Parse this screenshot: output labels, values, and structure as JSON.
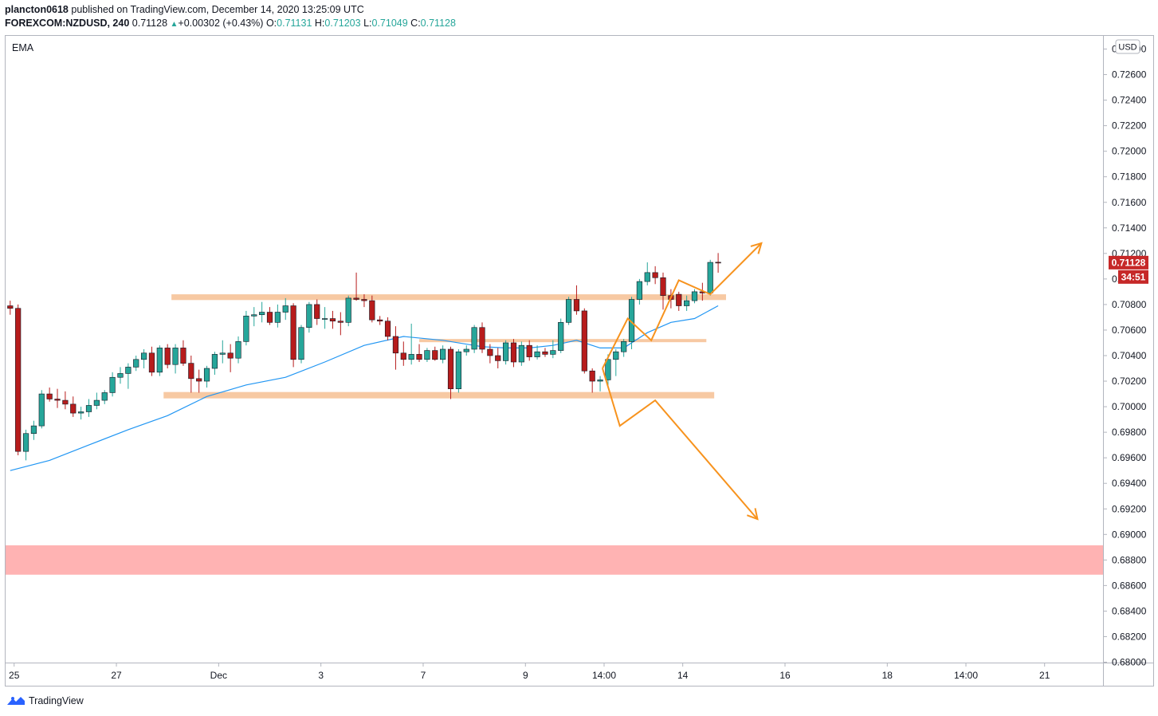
{
  "header": {
    "publisher": "plancton0618",
    "published_text": "published on TradingView.com, December 14, 2020 13:25:09 UTC",
    "symbol": "FOREXCOM:NZDUSD, 240",
    "last": "0.71128",
    "change_arrow": "▲",
    "change": "+0.00302 (+0.43%)",
    "o_label": "O:",
    "o": "0.71131",
    "h_label": "H:",
    "h": "0.71203",
    "l_label": "L:",
    "l": "0.71049",
    "c_label": "C:",
    "c": "0.71128"
  },
  "indicator_label": "EMA",
  "currency_label": "USD",
  "last_price_tag": "0.71128",
  "countdown_tag": "34:51",
  "brand": {
    "name": "TradingView",
    "icon": "tradingview-logo-icon"
  },
  "colors": {
    "up": "#26a69a",
    "down": "#b71c1c",
    "ema": "#2196f3",
    "zone": "#f7c9a3",
    "support_zone": "#ffb3b3",
    "arrow": "#f7931e",
    "price_tag": "#c62828"
  },
  "chart_data": {
    "type": "candlestick",
    "symbol": "FOREXCOM:NZDUSD",
    "timeframe": "240",
    "y_axis": {
      "ticks": [
        "0.68000",
        "0.68200",
        "0.68400",
        "0.68600",
        "0.68800",
        "0.69000",
        "0.69200",
        "0.69400",
        "0.69600",
        "0.69800",
        "0.70000",
        "0.70200",
        "0.70400",
        "0.70600",
        "0.70800",
        "0.71000",
        "0.71200",
        "0.71400",
        "0.71600",
        "0.71800",
        "0.72000",
        "0.72200",
        "0.72400",
        "0.72600",
        "0.72800"
      ],
      "range": [
        0.68,
        0.7285
      ]
    },
    "x_axis": {
      "labels": [
        "25",
        "27",
        "Dec",
        "3",
        "7",
        "9",
        "14:00",
        "14",
        "16",
        "18",
        "14:00",
        "21"
      ],
      "label_bar_index": [
        0.5,
        13.5,
        26.5,
        39.5,
        52.5,
        65.5,
        75.5,
        85.5,
        98.5,
        111.5,
        121.5,
        131.5
      ]
    },
    "candles": [
      {
        "i": 0,
        "o": 0.7079,
        "h": 0.7083,
        "l": 0.7072,
        "c": 0.7077
      },
      {
        "i": 1,
        "o": 0.7077,
        "h": 0.708,
        "l": 0.6962,
        "c": 0.6965
      },
      {
        "i": 2,
        "o": 0.6965,
        "h": 0.6982,
        "l": 0.6958,
        "c": 0.6979
      },
      {
        "i": 3,
        "o": 0.6979,
        "h": 0.6989,
        "l": 0.6974,
        "c": 0.6985
      },
      {
        "i": 4,
        "o": 0.6985,
        "h": 0.7013,
        "l": 0.6983,
        "c": 0.701
      },
      {
        "i": 5,
        "o": 0.701,
        "h": 0.7015,
        "l": 0.7004,
        "c": 0.7006
      },
      {
        "i": 6,
        "o": 0.7006,
        "h": 0.7014,
        "l": 0.6999,
        "c": 0.7005
      },
      {
        "i": 7,
        "o": 0.7005,
        "h": 0.7012,
        "l": 0.6998,
        "c": 0.7002
      },
      {
        "i": 8,
        "o": 0.7002,
        "h": 0.7008,
        "l": 0.6992,
        "c": 0.6995
      },
      {
        "i": 9,
        "o": 0.6995,
        "h": 0.7,
        "l": 0.699,
        "c": 0.6996
      },
      {
        "i": 10,
        "o": 0.6996,
        "h": 0.7006,
        "l": 0.6992,
        "c": 0.7001
      },
      {
        "i": 11,
        "o": 0.7001,
        "h": 0.7011,
        "l": 0.6998,
        "c": 0.7005
      },
      {
        "i": 12,
        "o": 0.7005,
        "h": 0.7013,
        "l": 0.7002,
        "c": 0.7011
      },
      {
        "i": 13,
        "o": 0.7011,
        "h": 0.7027,
        "l": 0.7008,
        "c": 0.7023
      },
      {
        "i": 14,
        "o": 0.7023,
        "h": 0.7031,
        "l": 0.7018,
        "c": 0.7026
      },
      {
        "i": 15,
        "o": 0.7026,
        "h": 0.7034,
        "l": 0.7014,
        "c": 0.7031
      },
      {
        "i": 16,
        "o": 0.7031,
        "h": 0.704,
        "l": 0.7028,
        "c": 0.7037
      },
      {
        "i": 17,
        "o": 0.7037,
        "h": 0.7045,
        "l": 0.703,
        "c": 0.7042
      },
      {
        "i": 18,
        "o": 0.7042,
        "h": 0.7047,
        "l": 0.7024,
        "c": 0.7027
      },
      {
        "i": 19,
        "o": 0.7027,
        "h": 0.7048,
        "l": 0.7024,
        "c": 0.7046
      },
      {
        "i": 20,
        "o": 0.7046,
        "h": 0.7049,
        "l": 0.703,
        "c": 0.7033
      },
      {
        "i": 21,
        "o": 0.7033,
        "h": 0.7049,
        "l": 0.7026,
        "c": 0.7046
      },
      {
        "i": 22,
        "o": 0.7046,
        "h": 0.7052,
        "l": 0.7032,
        "c": 0.7034
      },
      {
        "i": 23,
        "o": 0.7034,
        "h": 0.704,
        "l": 0.7011,
        "c": 0.7022
      },
      {
        "i": 24,
        "o": 0.7022,
        "h": 0.7029,
        "l": 0.7011,
        "c": 0.702
      },
      {
        "i": 25,
        "o": 0.702,
        "h": 0.7032,
        "l": 0.7015,
        "c": 0.703
      },
      {
        "i": 26,
        "o": 0.703,
        "h": 0.7043,
        "l": 0.7025,
        "c": 0.7041
      },
      {
        "i": 27,
        "o": 0.7041,
        "h": 0.7052,
        "l": 0.7034,
        "c": 0.7042
      },
      {
        "i": 28,
        "o": 0.7042,
        "h": 0.7049,
        "l": 0.7027,
        "c": 0.7038
      },
      {
        "i": 29,
        "o": 0.7038,
        "h": 0.7055,
        "l": 0.7034,
        "c": 0.7051
      },
      {
        "i": 30,
        "o": 0.7051,
        "h": 0.7075,
        "l": 0.7048,
        "c": 0.7071
      },
      {
        "i": 31,
        "o": 0.7071,
        "h": 0.7078,
        "l": 0.7063,
        "c": 0.7072
      },
      {
        "i": 32,
        "o": 0.7072,
        "h": 0.7082,
        "l": 0.7066,
        "c": 0.7074
      },
      {
        "i": 33,
        "o": 0.7074,
        "h": 0.7078,
        "l": 0.7064,
        "c": 0.7066
      },
      {
        "i": 34,
        "o": 0.7066,
        "h": 0.708,
        "l": 0.7062,
        "c": 0.7074
      },
      {
        "i": 35,
        "o": 0.7074,
        "h": 0.7085,
        "l": 0.7068,
        "c": 0.7079
      },
      {
        "i": 36,
        "o": 0.7079,
        "h": 0.7081,
        "l": 0.7031,
        "c": 0.7037
      },
      {
        "i": 37,
        "o": 0.7037,
        "h": 0.7064,
        "l": 0.7034,
        "c": 0.7062
      },
      {
        "i": 38,
        "o": 0.7062,
        "h": 0.7082,
        "l": 0.7058,
        "c": 0.708
      },
      {
        "i": 39,
        "o": 0.708,
        "h": 0.7084,
        "l": 0.7064,
        "c": 0.7069
      },
      {
        "i": 40,
        "o": 0.7069,
        "h": 0.7078,
        "l": 0.7061,
        "c": 0.7069
      },
      {
        "i": 41,
        "o": 0.7069,
        "h": 0.7075,
        "l": 0.7061,
        "c": 0.7067
      },
      {
        "i": 42,
        "o": 0.7067,
        "h": 0.7074,
        "l": 0.7056,
        "c": 0.7066
      },
      {
        "i": 43,
        "o": 0.7066,
        "h": 0.7087,
        "l": 0.7063,
        "c": 0.7085
      },
      {
        "i": 44,
        "o": 0.7085,
        "h": 0.7105,
        "l": 0.7083,
        "c": 0.7084
      },
      {
        "i": 45,
        "o": 0.7084,
        "h": 0.7088,
        "l": 0.7078,
        "c": 0.7083
      },
      {
        "i": 46,
        "o": 0.7083,
        "h": 0.7087,
        "l": 0.7066,
        "c": 0.7068
      },
      {
        "i": 47,
        "o": 0.7068,
        "h": 0.7071,
        "l": 0.7064,
        "c": 0.7067
      },
      {
        "i": 48,
        "o": 0.7067,
        "h": 0.707,
        "l": 0.7052,
        "c": 0.7055
      },
      {
        "i": 49,
        "o": 0.7055,
        "h": 0.7063,
        "l": 0.7029,
        "c": 0.7042
      },
      {
        "i": 50,
        "o": 0.7042,
        "h": 0.7051,
        "l": 0.7032,
        "c": 0.7037
      },
      {
        "i": 51,
        "o": 0.7037,
        "h": 0.7065,
        "l": 0.7033,
        "c": 0.7041
      },
      {
        "i": 52,
        "o": 0.7041,
        "h": 0.7049,
        "l": 0.7035,
        "c": 0.7037
      },
      {
        "i": 53,
        "o": 0.7037,
        "h": 0.7046,
        "l": 0.7035,
        "c": 0.7044
      },
      {
        "i": 54,
        "o": 0.7044,
        "h": 0.7047,
        "l": 0.7036,
        "c": 0.7037
      },
      {
        "i": 55,
        "o": 0.7037,
        "h": 0.7048,
        "l": 0.7034,
        "c": 0.7045
      },
      {
        "i": 56,
        "o": 0.7045,
        "h": 0.7047,
        "l": 0.7006,
        "c": 0.7014
      },
      {
        "i": 57,
        "o": 0.7014,
        "h": 0.7045,
        "l": 0.7011,
        "c": 0.7043
      },
      {
        "i": 58,
        "o": 0.7043,
        "h": 0.7048,
        "l": 0.704,
        "c": 0.7045
      },
      {
        "i": 59,
        "o": 0.7045,
        "h": 0.7064,
        "l": 0.7042,
        "c": 0.7062
      },
      {
        "i": 60,
        "o": 0.7062,
        "h": 0.7066,
        "l": 0.7042,
        "c": 0.7045
      },
      {
        "i": 61,
        "o": 0.7045,
        "h": 0.7049,
        "l": 0.7034,
        "c": 0.704
      },
      {
        "i": 62,
        "o": 0.704,
        "h": 0.7046,
        "l": 0.703,
        "c": 0.7036
      },
      {
        "i": 63,
        "o": 0.7036,
        "h": 0.7052,
        "l": 0.7033,
        "c": 0.705
      },
      {
        "i": 64,
        "o": 0.705,
        "h": 0.7053,
        "l": 0.7031,
        "c": 0.7035
      },
      {
        "i": 65,
        "o": 0.7035,
        "h": 0.7051,
        "l": 0.7032,
        "c": 0.7048
      },
      {
        "i": 66,
        "o": 0.7048,
        "h": 0.7052,
        "l": 0.7036,
        "c": 0.7039
      },
      {
        "i": 67,
        "o": 0.7039,
        "h": 0.7048,
        "l": 0.7037,
        "c": 0.7043
      },
      {
        "i": 68,
        "o": 0.7043,
        "h": 0.7046,
        "l": 0.7039,
        "c": 0.7041
      },
      {
        "i": 69,
        "o": 0.7041,
        "h": 0.7052,
        "l": 0.7038,
        "c": 0.7044
      },
      {
        "i": 70,
        "o": 0.7044,
        "h": 0.7069,
        "l": 0.7042,
        "c": 0.7066
      },
      {
        "i": 71,
        "o": 0.7066,
        "h": 0.7086,
        "l": 0.7064,
        "c": 0.7084
      },
      {
        "i": 72,
        "o": 0.7084,
        "h": 0.7095,
        "l": 0.7072,
        "c": 0.7075
      },
      {
        "i": 73,
        "o": 0.7075,
        "h": 0.7077,
        "l": 0.7026,
        "c": 0.7028
      },
      {
        "i": 74,
        "o": 0.7028,
        "h": 0.703,
        "l": 0.7011,
        "c": 0.702
      },
      {
        "i": 75,
        "o": 0.702,
        "h": 0.7024,
        "l": 0.7012,
        "c": 0.7021
      },
      {
        "i": 76,
        "o": 0.7021,
        "h": 0.7041,
        "l": 0.7016,
        "c": 0.7037
      },
      {
        "i": 77,
        "o": 0.7037,
        "h": 0.7045,
        "l": 0.7024,
        "c": 0.7043
      },
      {
        "i": 78,
        "o": 0.7043,
        "h": 0.7053,
        "l": 0.7039,
        "c": 0.7051
      },
      {
        "i": 79,
        "o": 0.7051,
        "h": 0.7086,
        "l": 0.7045,
        "c": 0.7084
      },
      {
        "i": 80,
        "o": 0.7084,
        "h": 0.71,
        "l": 0.708,
        "c": 0.7098
      },
      {
        "i": 81,
        "o": 0.7098,
        "h": 0.7113,
        "l": 0.7095,
        "c": 0.7105
      },
      {
        "i": 82,
        "o": 0.7105,
        "h": 0.711,
        "l": 0.7096,
        "c": 0.7101
      },
      {
        "i": 83,
        "o": 0.7101,
        "h": 0.7105,
        "l": 0.7076,
        "c": 0.7087
      },
      {
        "i": 84,
        "o": 0.7087,
        "h": 0.7092,
        "l": 0.7077,
        "c": 0.7084
      },
      {
        "i": 85,
        "o": 0.7088,
        "h": 0.709,
        "l": 0.7075,
        "c": 0.7079
      },
      {
        "i": 86,
        "o": 0.7079,
        "h": 0.7087,
        "l": 0.7075,
        "c": 0.7083
      },
      {
        "i": 87,
        "o": 0.7083,
        "h": 0.7092,
        "l": 0.7081,
        "c": 0.709
      },
      {
        "i": 88,
        "o": 0.709,
        "h": 0.7097,
        "l": 0.7083,
        "c": 0.7089
      },
      {
        "i": 89,
        "o": 0.7089,
        "h": 0.7115,
        "l": 0.7087,
        "c": 0.7113
      },
      {
        "i": 90,
        "o": 0.71131,
        "h": 0.71203,
        "l": 0.71049,
        "c": 0.71128
      }
    ],
    "ema_series": [
      {
        "i": 0,
        "v": 0.695
      },
      {
        "i": 5,
        "v": 0.6958
      },
      {
        "i": 10,
        "v": 0.697
      },
      {
        "i": 15,
        "v": 0.6982
      },
      {
        "i": 20,
        "v": 0.6993
      },
      {
        "i": 25,
        "v": 0.7008
      },
      {
        "i": 30,
        "v": 0.7017
      },
      {
        "i": 35,
        "v": 0.7023
      },
      {
        "i": 40,
        "v": 0.7035
      },
      {
        "i": 45,
        "v": 0.7048
      },
      {
        "i": 50,
        "v": 0.7055
      },
      {
        "i": 55,
        "v": 0.7052
      },
      {
        "i": 60,
        "v": 0.7047
      },
      {
        "i": 63,
        "v": 0.7046
      },
      {
        "i": 66,
        "v": 0.7046
      },
      {
        "i": 69,
        "v": 0.7048
      },
      {
        "i": 72,
        "v": 0.7052
      },
      {
        "i": 75,
        "v": 0.7046
      },
      {
        "i": 78,
        "v": 0.7046
      },
      {
        "i": 81,
        "v": 0.7058
      },
      {
        "i": 84,
        "v": 0.7066
      },
      {
        "i": 87,
        "v": 0.7069
      },
      {
        "i": 90,
        "v": 0.7079
      }
    ],
    "zones": [
      {
        "name": "resistance-zone",
        "from_bar": 20.5,
        "to_bar": 91,
        "y1": 0.70835,
        "y2": 0.7088,
        "color": "#f7c9a3"
      },
      {
        "name": "mid-zone",
        "from_bar": 52,
        "to_bar": 88.5,
        "y1": 0.70505,
        "y2": 0.7053,
        "color": "#f7c9a3"
      },
      {
        "name": "support-zone",
        "from_bar": 19.5,
        "to_bar": 89.5,
        "y1": 0.70065,
        "y2": 0.70115,
        "color": "#f7c9a3"
      },
      {
        "name": "demand-zone",
        "from_bar": -1,
        "to_bar": 142,
        "y1": 0.68685,
        "y2": 0.68915,
        "color": "#ffb3b3"
      }
    ],
    "projections": [
      {
        "name": "bullish-path",
        "points": [
          [
            75.3,
            0.703
          ],
          [
            78.5,
            0.7069
          ],
          [
            81.5,
            0.7052
          ],
          [
            85.0,
            0.7099
          ],
          [
            89.0,
            0.7088
          ],
          [
            95.5,
            0.7128
          ]
        ],
        "color": "#f7931e"
      },
      {
        "name": "bearish-path",
        "points": [
          [
            75.3,
            0.703
          ],
          [
            77.5,
            0.6985
          ],
          [
            82.0,
            0.7005
          ],
          [
            95.0,
            0.6912
          ]
        ],
        "color": "#f7931e"
      }
    ]
  }
}
